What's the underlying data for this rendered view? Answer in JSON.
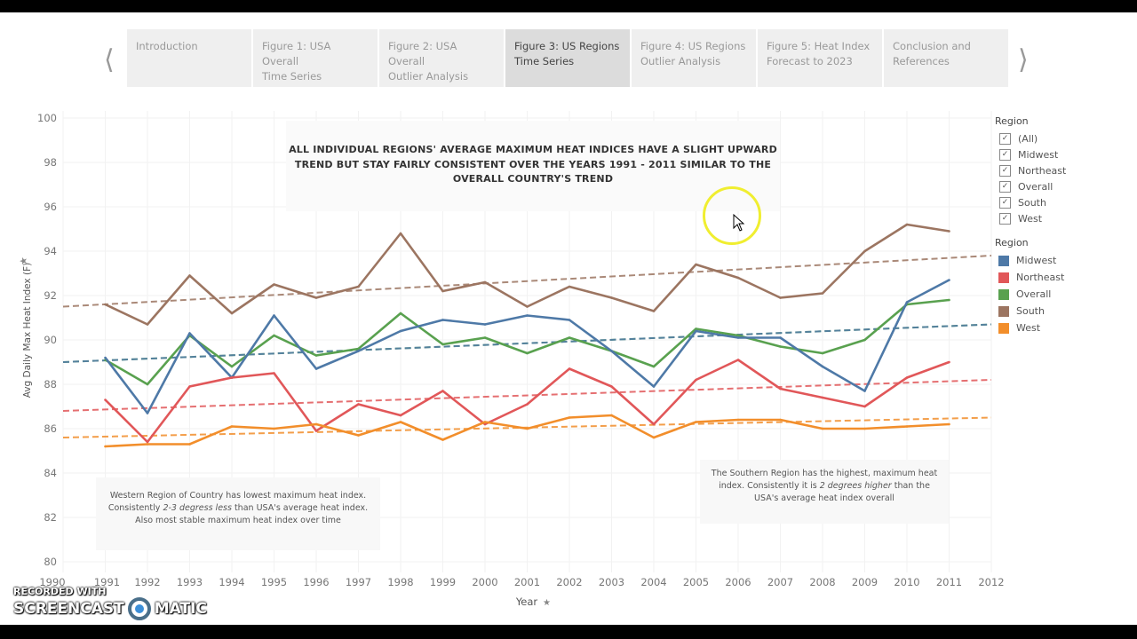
{
  "nav": {
    "prev_icon": "chevron-left-icon",
    "next_icon": "chevron-right-icon",
    "tabs": [
      {
        "line1": "Introduction",
        "line2": "",
        "active": false
      },
      {
        "line1": "Figure 1: USA Overall",
        "line2": "Time Series",
        "active": false
      },
      {
        "line1": "Figure 2: USA Overall",
        "line2": "Outlier Analysis",
        "active": false
      },
      {
        "line1": "Figure 3: US Regions",
        "line2": "Time Series",
        "active": true
      },
      {
        "line1": "Figure 4: US Regions",
        "line2": "Outlier Analysis",
        "active": false
      },
      {
        "line1": "Figure 5: Heat Index",
        "line2": "Forecast to 2023",
        "active": false
      },
      {
        "line1": "Conclusion and",
        "line2": "References",
        "active": false
      }
    ]
  },
  "annotations": {
    "title": "ALL INDIVIDUAL REGIONS' AVERAGE MAXIMUM HEAT INDICES HAVE A SLIGHT UPWARD TREND BUT STAY FAIRLY CONSISTENT OVER THE YEARS 1991 - 2011 SIMILAR TO THE OVERALL COUNTRY'S TREND",
    "west_note": {
      "l1": "Western Region of Country has lowest maximum heat index.",
      "l2a": "Consistently ",
      "l2b": "2-3 degress less",
      "l2c": " than USA's average heat index.",
      "l3": "Also most stable maximum heat index over time"
    },
    "south_note": {
      "l1": "The Southern Region has the highest, maximum heat",
      "l2a": "index.  Consistently it is ",
      "l2b": "2 degrees higher",
      "l2c": " than the",
      "l3": "USA's average heat index overall"
    }
  },
  "filter_legend": {
    "title": "Region",
    "items": [
      {
        "label": "(All)",
        "checked": true
      },
      {
        "label": "Midwest",
        "checked": true
      },
      {
        "label": "Northeast",
        "checked": true
      },
      {
        "label": "Overall",
        "checked": true
      },
      {
        "label": "South",
        "checked": true
      },
      {
        "label": "West",
        "checked": true
      }
    ]
  },
  "color_legend": {
    "title": "Region",
    "items": [
      {
        "label": "Midwest",
        "color": "#4e79a7"
      },
      {
        "label": "Northeast",
        "color": "#e15759"
      },
      {
        "label": "Overall",
        "color": "#59a14f"
      },
      {
        "label": "South",
        "color": "#9c7561"
      },
      {
        "label": "West",
        "color": "#f28e2b"
      }
    ]
  },
  "watermark": {
    "line1": "RECORDED WITH",
    "line2a": "SCREENCAST",
    "line2b": "MATIC"
  },
  "chart_data": {
    "type": "line",
    "xlabel": "Year",
    "ylabel": "Avg Daily Max Heat Index (F)",
    "xlim": [
      1990,
      2012
    ],
    "ylim": [
      80,
      100
    ],
    "yticks": [
      80,
      82,
      84,
      86,
      88,
      90,
      92,
      94,
      96,
      98,
      100
    ],
    "xticks": [
      1990,
      1991,
      1992,
      1993,
      1994,
      1995,
      1996,
      1997,
      1998,
      1999,
      2000,
      2001,
      2002,
      2003,
      2004,
      2005,
      2006,
      2007,
      2008,
      2009,
      2010,
      2011,
      2012
    ],
    "grid": true,
    "legend": "right",
    "x": [
      1991,
      1992,
      1993,
      1994,
      1995,
      1996,
      1997,
      1998,
      1999,
      2000,
      2001,
      2002,
      2003,
      2004,
      2005,
      2006,
      2007,
      2008,
      2009,
      2010,
      2011
    ],
    "series": [
      {
        "name": "South",
        "color": "#9c7561",
        "values": [
          91.6,
          90.7,
          92.9,
          91.2,
          92.5,
          91.9,
          92.4,
          94.8,
          92.2,
          92.6,
          91.5,
          92.4,
          91.9,
          91.3,
          93.4,
          92.8,
          91.9,
          92.1,
          94.0,
          95.2,
          94.9
        ],
        "trend": [
          91.5,
          93.8
        ]
      },
      {
        "name": "Overall",
        "color": "#59a14f",
        "values": [
          89.1,
          88.0,
          90.2,
          88.8,
          90.2,
          89.3,
          89.6,
          91.2,
          89.8,
          90.1,
          89.4,
          90.1,
          89.5,
          88.8,
          90.5,
          90.2,
          89.7,
          89.4,
          90.0,
          91.6,
          91.8
        ],
        "trend": [
          89.0,
          90.7
        ]
      },
      {
        "name": "Midwest",
        "color": "#4e79a7",
        "values": [
          89.2,
          86.7,
          90.3,
          88.3,
          91.1,
          88.7,
          89.5,
          90.4,
          90.9,
          90.7,
          91.1,
          90.9,
          89.5,
          87.9,
          90.4,
          90.1,
          90.1,
          88.8,
          87.7,
          91.7,
          92.7
        ],
        "trend": [
          89.0,
          90.7
        ]
      },
      {
        "name": "Northeast",
        "color": "#e15759",
        "values": [
          87.3,
          85.4,
          87.9,
          88.3,
          88.5,
          85.9,
          87.1,
          86.6,
          87.7,
          86.2,
          87.1,
          88.7,
          87.9,
          86.2,
          88.2,
          89.1,
          87.8,
          87.4,
          87.0,
          88.3,
          89.0
        ],
        "trend": [
          86.8,
          88.2
        ]
      },
      {
        "name": "West",
        "color": "#f28e2b",
        "values": [
          85.2,
          85.3,
          85.3,
          86.1,
          86.0,
          86.2,
          85.7,
          86.3,
          85.5,
          86.3,
          86.0,
          86.5,
          86.6,
          85.6,
          86.3,
          86.4,
          86.4,
          86.0,
          86.0,
          86.1,
          86.2
        ],
        "trend": [
          85.6,
          86.5
        ]
      }
    ]
  }
}
